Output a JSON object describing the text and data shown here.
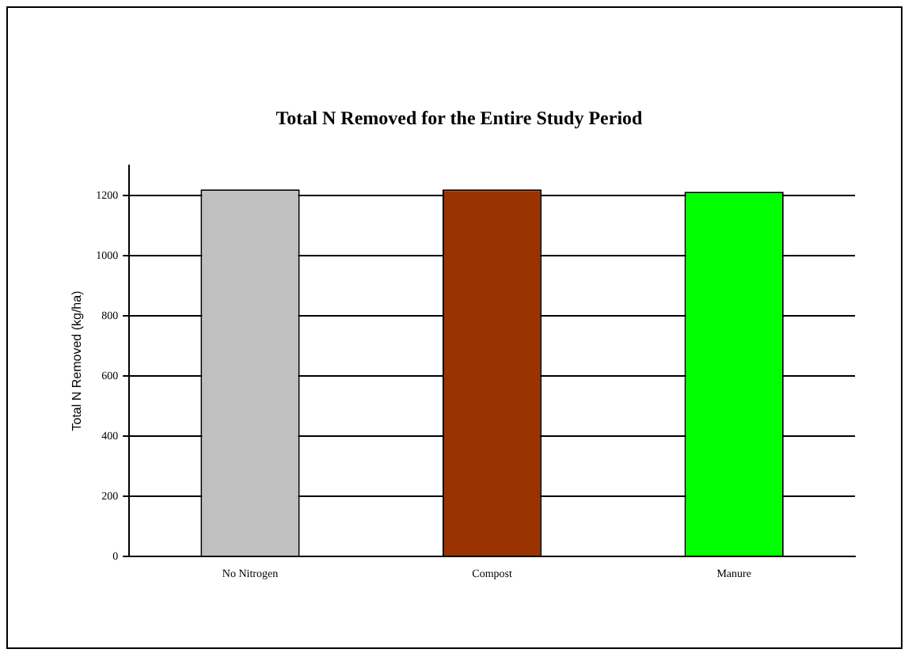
{
  "chart_data": {
    "type": "bar",
    "title": "Total N Removed for the Entire Study Period",
    "ylabel": "Total N Removed (kg/ha)",
    "categories": [
      "No Nitrogen",
      "Compost",
      "Manure"
    ],
    "values": [
      1220,
      1220,
      1212
    ],
    "colors": [
      "#c0c0c0",
      "#993300",
      "#00ff00"
    ],
    "ylim": [
      0,
      1300
    ],
    "yticks": [
      0,
      200,
      400,
      600,
      800,
      1000,
      1200
    ],
    "grid": "y",
    "legend": false
  }
}
